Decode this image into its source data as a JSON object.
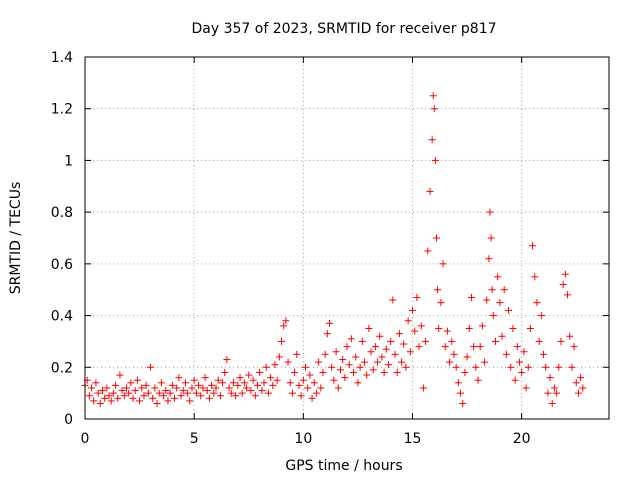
{
  "chart_data": {
    "type": "scatter",
    "title": "Day 357 of 2023, SRMTID for receiver p817",
    "xlabel": "GPS time / hours",
    "ylabel": "SRMTID / TECUs",
    "xlim": [
      0,
      24
    ],
    "ylim": [
      0,
      1.4
    ],
    "x_ticks": [
      0,
      5,
      10,
      15,
      20
    ],
    "x_tick_labels": [
      "0",
      "5",
      "10",
      "15",
      "20"
    ],
    "y_ticks": [
      0,
      0.2,
      0.4,
      0.6,
      0.8,
      1,
      1.2,
      1.4
    ],
    "y_tick_labels": [
      "0",
      "0.2",
      "0.4",
      "0.6",
      "0.8",
      "1",
      "1.2",
      "1.4"
    ],
    "grid": true,
    "marker": "+",
    "color": "#ff0000",
    "series": [
      {
        "name": "SRMTID",
        "points": [
          [
            0.0,
            0.13
          ],
          [
            0.1,
            0.15
          ],
          [
            0.2,
            0.09
          ],
          [
            0.3,
            0.12
          ],
          [
            0.4,
            0.07
          ],
          [
            0.5,
            0.14
          ],
          [
            0.6,
            0.1
          ],
          [
            0.7,
            0.06
          ],
          [
            0.8,
            0.11
          ],
          [
            0.9,
            0.08
          ],
          [
            1.0,
            0.12
          ],
          [
            1.1,
            0.09
          ],
          [
            1.2,
            0.07
          ],
          [
            1.3,
            0.1
          ],
          [
            1.4,
            0.13
          ],
          [
            1.5,
            0.08
          ],
          [
            1.6,
            0.17
          ],
          [
            1.7,
            0.11
          ],
          [
            1.8,
            0.09
          ],
          [
            1.9,
            0.12
          ],
          [
            2.0,
            0.1
          ],
          [
            2.1,
            0.14
          ],
          [
            2.2,
            0.08
          ],
          [
            2.3,
            0.11
          ],
          [
            2.4,
            0.15
          ],
          [
            2.5,
            0.07
          ],
          [
            2.6,
            0.12
          ],
          [
            2.7,
            0.09
          ],
          [
            2.8,
            0.13
          ],
          [
            2.9,
            0.1
          ],
          [
            3.0,
            0.2
          ],
          [
            3.1,
            0.08
          ],
          [
            3.2,
            0.12
          ],
          [
            3.3,
            0.06
          ],
          [
            3.4,
            0.1
          ],
          [
            3.5,
            0.14
          ],
          [
            3.6,
            0.09
          ],
          [
            3.7,
            0.11
          ],
          [
            3.8,
            0.07
          ],
          [
            3.9,
            0.1
          ],
          [
            4.0,
            0.13
          ],
          [
            4.1,
            0.08
          ],
          [
            4.2,
            0.12
          ],
          [
            4.3,
            0.16
          ],
          [
            4.4,
            0.09
          ],
          [
            4.5,
            0.11
          ],
          [
            4.6,
            0.14
          ],
          [
            4.7,
            0.1
          ],
          [
            4.8,
            0.07
          ],
          [
            4.9,
            0.12
          ],
          [
            5.0,
            0.15
          ],
          [
            5.1,
            0.1
          ],
          [
            5.2,
            0.13
          ],
          [
            5.3,
            0.09
          ],
          [
            5.4,
            0.12
          ],
          [
            5.5,
            0.16
          ],
          [
            5.6,
            0.11
          ],
          [
            5.7,
            0.08
          ],
          [
            5.8,
            0.13
          ],
          [
            5.9,
            0.1
          ],
          [
            6.0,
            0.12
          ],
          [
            6.1,
            0.15
          ],
          [
            6.2,
            0.09
          ],
          [
            6.3,
            0.14
          ],
          [
            6.4,
            0.18
          ],
          [
            6.5,
            0.23
          ],
          [
            6.6,
            0.12
          ],
          [
            6.7,
            0.1
          ],
          [
            6.8,
            0.14
          ],
          [
            6.9,
            0.09
          ],
          [
            7.0,
            0.13
          ],
          [
            7.1,
            0.16
          ],
          [
            7.2,
            0.1
          ],
          [
            7.3,
            0.14
          ],
          [
            7.4,
            0.12
          ],
          [
            7.5,
            0.17
          ],
          [
            7.6,
            0.11
          ],
          [
            7.7,
            0.15
          ],
          [
            7.8,
            0.09
          ],
          [
            7.9,
            0.13
          ],
          [
            8.0,
            0.18
          ],
          [
            8.1,
            0.11
          ],
          [
            8.2,
            0.14
          ],
          [
            8.3,
            0.2
          ],
          [
            8.4,
            0.1
          ],
          [
            8.5,
            0.16
          ],
          [
            8.6,
            0.13
          ],
          [
            8.7,
            0.21
          ],
          [
            8.8,
            0.15
          ],
          [
            8.9,
            0.24
          ],
          [
            9.0,
            0.3
          ],
          [
            9.1,
            0.36
          ],
          [
            9.2,
            0.38
          ],
          [
            9.3,
            0.22
          ],
          [
            9.4,
            0.14
          ],
          [
            9.5,
            0.1
          ],
          [
            9.6,
            0.18
          ],
          [
            9.7,
            0.25
          ],
          [
            9.8,
            0.13
          ],
          [
            9.9,
            0.09
          ],
          [
            10.0,
            0.15
          ],
          [
            10.1,
            0.2
          ],
          [
            10.2,
            0.12
          ],
          [
            10.3,
            0.17
          ],
          [
            10.4,
            0.08
          ],
          [
            10.5,
            0.14
          ],
          [
            10.6,
            0.1
          ],
          [
            10.7,
            0.22
          ],
          [
            10.8,
            0.12
          ],
          [
            10.9,
            0.18
          ],
          [
            11.0,
            0.25
          ],
          [
            11.1,
            0.33
          ],
          [
            11.2,
            0.37
          ],
          [
            11.3,
            0.2
          ],
          [
            11.4,
            0.15
          ],
          [
            11.5,
            0.26
          ],
          [
            11.6,
            0.12
          ],
          [
            11.7,
            0.19
          ],
          [
            11.8,
            0.23
          ],
          [
            11.9,
            0.16
          ],
          [
            12.0,
            0.28
          ],
          [
            12.1,
            0.21
          ],
          [
            12.2,
            0.31
          ],
          [
            12.3,
            0.18
          ],
          [
            12.4,
            0.24
          ],
          [
            12.5,
            0.14
          ],
          [
            12.6,
            0.2
          ],
          [
            12.7,
            0.3
          ],
          [
            12.8,
            0.22
          ],
          [
            12.9,
            0.17
          ],
          [
            13.0,
            0.35
          ],
          [
            13.1,
            0.26
          ],
          [
            13.2,
            0.19
          ],
          [
            13.3,
            0.28
          ],
          [
            13.4,
            0.22
          ],
          [
            13.5,
            0.32
          ],
          [
            13.6,
            0.24
          ],
          [
            13.7,
            0.18
          ],
          [
            13.8,
            0.27
          ],
          [
            13.9,
            0.21
          ],
          [
            14.0,
            0.3
          ],
          [
            14.1,
            0.46
          ],
          [
            14.2,
            0.25
          ],
          [
            14.3,
            0.18
          ],
          [
            14.4,
            0.33
          ],
          [
            14.5,
            0.22
          ],
          [
            14.6,
            0.29
          ],
          [
            14.7,
            0.2
          ],
          [
            14.8,
            0.38
          ],
          [
            14.9,
            0.26
          ],
          [
            15.0,
            0.42
          ],
          [
            15.1,
            0.34
          ],
          [
            15.2,
            0.47
          ],
          [
            15.3,
            0.28
          ],
          [
            15.4,
            0.36
          ],
          [
            15.5,
            0.12
          ],
          [
            15.6,
            0.3
          ],
          [
            15.7,
            0.65
          ],
          [
            15.8,
            0.88
          ],
          [
            15.9,
            1.08
          ],
          [
            15.95,
            1.25
          ],
          [
            16.0,
            1.2
          ],
          [
            16.05,
            1.0
          ],
          [
            16.1,
            0.7
          ],
          [
            16.15,
            0.5
          ],
          [
            16.2,
            0.35
          ],
          [
            16.3,
            0.45
          ],
          [
            16.4,
            0.6
          ],
          [
            16.5,
            0.28
          ],
          [
            16.6,
            0.34
          ],
          [
            16.7,
            0.22
          ],
          [
            16.8,
            0.3
          ],
          [
            16.9,
            0.25
          ],
          [
            17.0,
            0.2
          ],
          [
            17.1,
            0.14
          ],
          [
            17.2,
            0.1
          ],
          [
            17.3,
            0.06
          ],
          [
            17.4,
            0.18
          ],
          [
            17.5,
            0.24
          ],
          [
            17.6,
            0.35
          ],
          [
            17.7,
            0.47
          ],
          [
            17.8,
            0.28
          ],
          [
            17.9,
            0.2
          ],
          [
            18.0,
            0.15
          ],
          [
            18.1,
            0.28
          ],
          [
            18.2,
            0.36
          ],
          [
            18.3,
            0.22
          ],
          [
            18.4,
            0.46
          ],
          [
            18.5,
            0.62
          ],
          [
            18.55,
            0.8
          ],
          [
            18.6,
            0.7
          ],
          [
            18.65,
            0.5
          ],
          [
            18.7,
            0.4
          ],
          [
            18.8,
            0.3
          ],
          [
            18.9,
            0.55
          ],
          [
            19.0,
            0.45
          ],
          [
            19.1,
            0.32
          ],
          [
            19.2,
            0.5
          ],
          [
            19.3,
            0.25
          ],
          [
            19.4,
            0.42
          ],
          [
            19.5,
            0.2
          ],
          [
            19.6,
            0.35
          ],
          [
            19.7,
            0.15
          ],
          [
            19.8,
            0.28
          ],
          [
            19.9,
            0.22
          ],
          [
            20.0,
            0.18
          ],
          [
            20.1,
            0.26
          ],
          [
            20.2,
            0.12
          ],
          [
            20.3,
            0.2
          ],
          [
            20.4,
            0.35
          ],
          [
            20.5,
            0.67
          ],
          [
            20.6,
            0.55
          ],
          [
            20.7,
            0.45
          ],
          [
            20.8,
            0.3
          ],
          [
            20.9,
            0.4
          ],
          [
            21.0,
            0.25
          ],
          [
            21.1,
            0.2
          ],
          [
            21.2,
            0.1
          ],
          [
            21.3,
            0.16
          ],
          [
            21.4,
            0.06
          ],
          [
            21.5,
            0.12
          ],
          [
            21.6,
            0.1
          ],
          [
            21.7,
            0.2
          ],
          [
            21.8,
            0.3
          ],
          [
            21.9,
            0.52
          ],
          [
            22.0,
            0.56
          ],
          [
            22.1,
            0.48
          ],
          [
            22.2,
            0.32
          ],
          [
            22.3,
            0.2
          ],
          [
            22.4,
            0.28
          ],
          [
            22.5,
            0.14
          ],
          [
            22.6,
            0.1
          ],
          [
            22.7,
            0.16
          ],
          [
            22.8,
            0.12
          ]
        ]
      }
    ]
  }
}
